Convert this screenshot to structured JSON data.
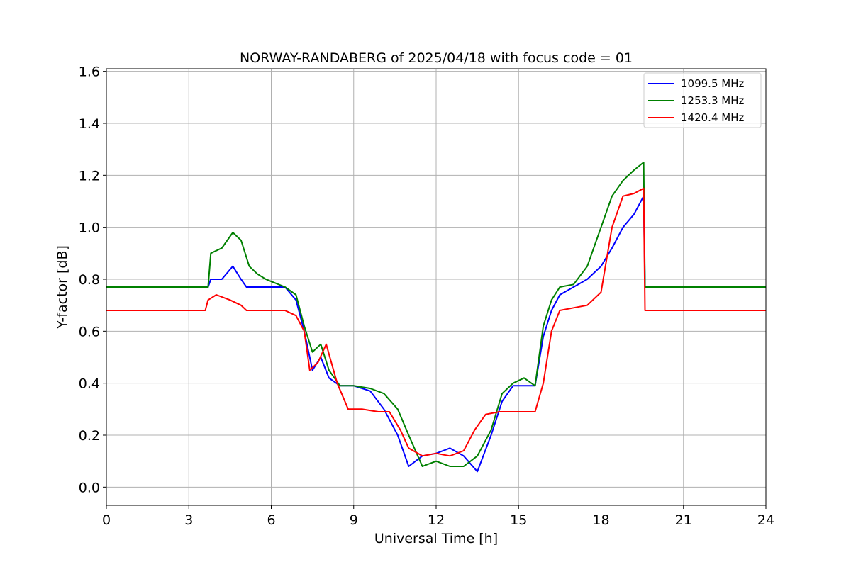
{
  "chart_data": {
    "type": "line",
    "title": "NORWAY-RANDABERG of 2025/04/18 with focus code = 01",
    "xlabel": "Universal Time [h]",
    "ylabel": "Y-factor [dB]",
    "xlim": [
      0,
      24
    ],
    "ylim": [
      -0.07,
      1.61
    ],
    "xticks": [
      0,
      3,
      6,
      9,
      12,
      15,
      18,
      21,
      24
    ],
    "yticks": [
      0.0,
      0.2,
      0.4,
      0.6,
      0.8,
      1.0,
      1.2,
      1.4,
      1.6
    ],
    "ytick_labels": [
      "0.0",
      "0.2",
      "0.4",
      "0.6",
      "0.8",
      "1.0",
      "1.2",
      "1.4",
      "1.6"
    ],
    "grid": true,
    "legend_position": "top-right",
    "series": [
      {
        "name": "1099.5 MHz",
        "color": "#0000ff",
        "x": [
          0,
          3.7,
          3.8,
          4.2,
          4.6,
          4.9,
          5.1,
          6.5,
          6.9,
          7.2,
          7.5,
          7.8,
          8.1,
          8.5,
          9.0,
          9.6,
          10.1,
          10.6,
          11.0,
          11.5,
          12.0,
          12.5,
          13.0,
          13.5,
          14.0,
          14.4,
          14.8,
          15.2,
          15.6,
          15.9,
          16.2,
          16.5,
          17.0,
          17.5,
          18.0,
          18.4,
          18.8,
          19.2,
          19.55,
          19.6,
          19.65,
          24
        ],
        "y": [
          0.77,
          0.77,
          0.8,
          0.8,
          0.85,
          0.8,
          0.77,
          0.77,
          0.72,
          0.6,
          0.45,
          0.5,
          0.42,
          0.39,
          0.39,
          0.37,
          0.3,
          0.2,
          0.08,
          0.12,
          0.13,
          0.15,
          0.12,
          0.06,
          0.2,
          0.33,
          0.39,
          0.39,
          0.39,
          0.58,
          0.68,
          0.74,
          0.77,
          0.8,
          0.85,
          0.92,
          1.0,
          1.05,
          1.12,
          0.77,
          0.77,
          0.77
        ]
      },
      {
        "name": "1253.3 MHz",
        "color": "#008000",
        "x": [
          0,
          3.7,
          3.8,
          4.2,
          4.6,
          4.9,
          5.2,
          5.5,
          5.8,
          6.5,
          6.9,
          7.2,
          7.5,
          7.8,
          8.1,
          8.5,
          9.0,
          9.6,
          10.1,
          10.6,
          11.0,
          11.5,
          12.0,
          12.5,
          13.0,
          13.5,
          14.0,
          14.4,
          14.8,
          15.2,
          15.6,
          15.9,
          16.2,
          16.5,
          17.0,
          17.5,
          18.0,
          18.4,
          18.8,
          19.2,
          19.55,
          19.6,
          19.65,
          24
        ],
        "y": [
          0.77,
          0.77,
          0.9,
          0.92,
          0.98,
          0.95,
          0.85,
          0.82,
          0.8,
          0.77,
          0.74,
          0.62,
          0.52,
          0.55,
          0.45,
          0.39,
          0.39,
          0.38,
          0.36,
          0.3,
          0.2,
          0.08,
          0.1,
          0.08,
          0.08,
          0.12,
          0.22,
          0.36,
          0.4,
          0.42,
          0.39,
          0.62,
          0.72,
          0.77,
          0.78,
          0.85,
          1.0,
          1.12,
          1.18,
          1.22,
          1.25,
          0.77,
          0.77,
          0.77
        ]
      },
      {
        "name": "1420.4 MHz",
        "color": "#ff0000",
        "x": [
          0,
          3.6,
          3.7,
          4.0,
          4.5,
          4.9,
          5.1,
          6.5,
          6.9,
          7.2,
          7.4,
          7.7,
          8.0,
          8.4,
          8.8,
          9.3,
          9.9,
          10.3,
          10.7,
          11.0,
          11.5,
          12.0,
          12.5,
          13.0,
          13.4,
          13.8,
          14.3,
          14.8,
          15.3,
          15.6,
          15.9,
          16.2,
          16.5,
          17.0,
          17.5,
          18.0,
          18.4,
          18.8,
          19.2,
          19.55,
          19.6,
          19.65,
          24
        ],
        "y": [
          0.68,
          0.68,
          0.72,
          0.74,
          0.72,
          0.7,
          0.68,
          0.68,
          0.66,
          0.6,
          0.45,
          0.48,
          0.55,
          0.4,
          0.3,
          0.3,
          0.29,
          0.29,
          0.22,
          0.15,
          0.12,
          0.13,
          0.12,
          0.14,
          0.22,
          0.28,
          0.29,
          0.29,
          0.29,
          0.29,
          0.4,
          0.6,
          0.68,
          0.69,
          0.7,
          0.75,
          1.0,
          1.12,
          1.13,
          1.15,
          0.68,
          0.68,
          0.68
        ]
      }
    ]
  }
}
